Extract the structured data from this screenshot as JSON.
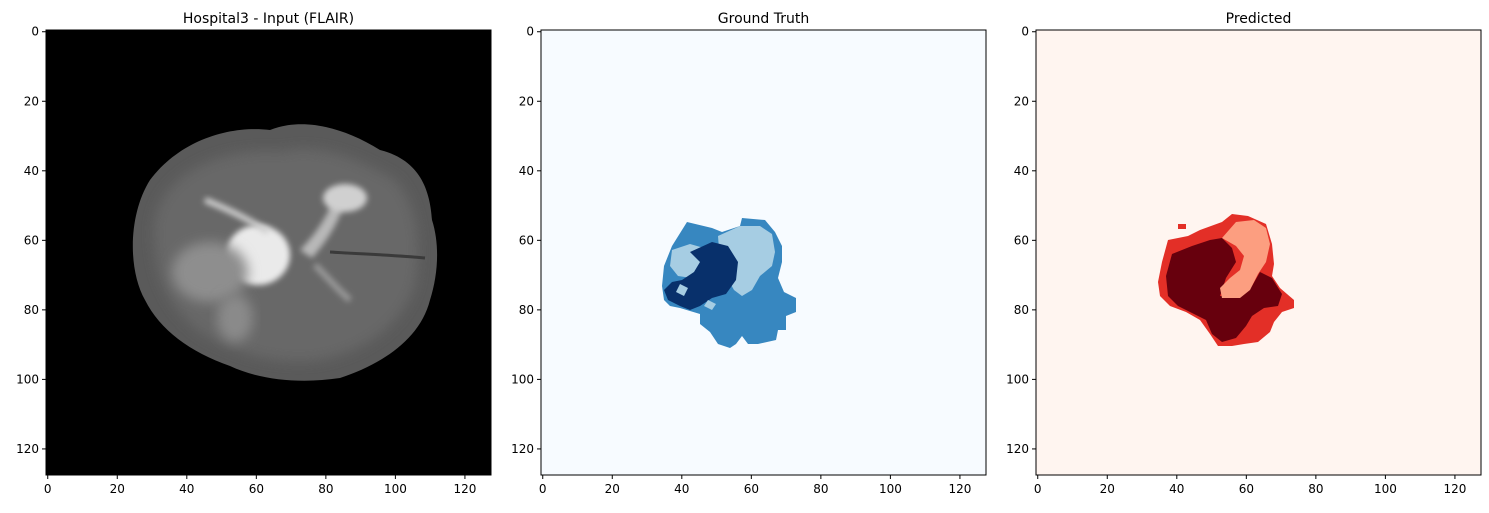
{
  "figure": {
    "panels": [
      {
        "id": "input",
        "title": "Hospital3 - Input (FLAIR)",
        "background": "#000000",
        "colormap": "gray"
      },
      {
        "id": "ground-truth",
        "title": "Ground Truth",
        "background": "#f7fbff",
        "colormap": "Blues",
        "class_colors": {
          "edema": "#3787c0",
          "enhancing": "#a6cde3",
          "necrotic": "#08306b"
        }
      },
      {
        "id": "predicted",
        "title": "Predicted",
        "background": "#fff5f0",
        "colormap": "Reds",
        "class_colors": {
          "edema": "#e32f27",
          "enhancing": "#fc9e80",
          "necrotic": "#67000d"
        }
      }
    ],
    "axes": {
      "x_ticks": [
        "0",
        "20",
        "40",
        "60",
        "80",
        "100",
        "120"
      ],
      "y_ticks": [
        "0",
        "20",
        "40",
        "60",
        "80",
        "100",
        "120"
      ],
      "x_tick_values": [
        0,
        20,
        40,
        60,
        80,
        100,
        120
      ],
      "y_tick_values": [
        0,
        20,
        40,
        60,
        80,
        100,
        120
      ],
      "extent": [
        -0.5,
        127.5
      ]
    }
  }
}
